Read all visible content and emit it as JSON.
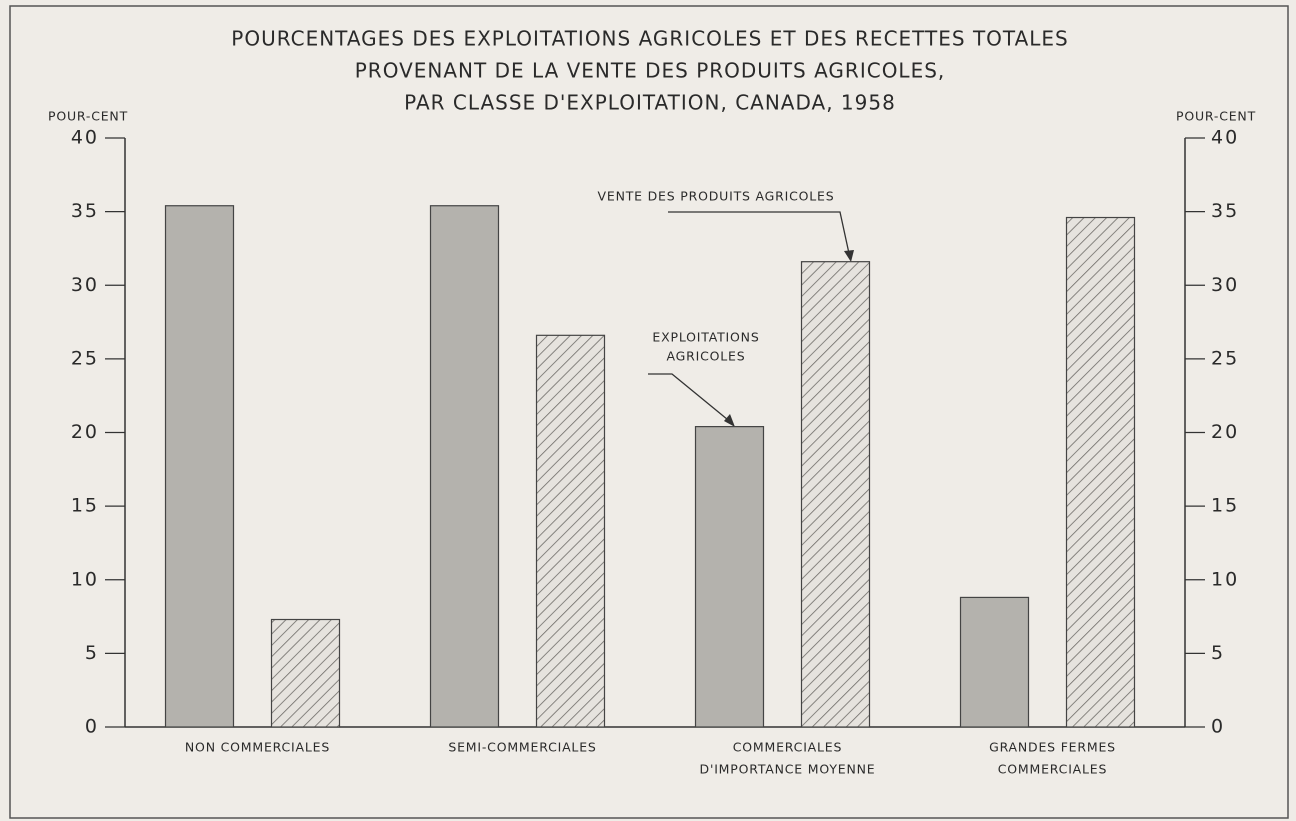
{
  "chart_data": {
    "type": "bar",
    "title": [
      "POURCENTAGES DES EXPLOITATIONS AGRICOLES ET DES RECETTES TOTALES",
      "PROVENANT DE LA VENTE DES PRODUITS AGRICOLES,",
      "PAR CLASSE D'EXPLOITATION, CANADA, 1958"
    ],
    "ylabel": "POUR-CENT",
    "y2label": "POUR-CENT",
    "categories": [
      [
        "NON COMMERCIALES"
      ],
      [
        "SEMI-COMMERCIALES"
      ],
      [
        "COMMERCIALES",
        "D'IMPORTANCE MOYENNE"
      ],
      [
        "GRANDES FERMES",
        "COMMERCIALES"
      ]
    ],
    "series": [
      {
        "name": [
          "EXPLOITATIONS",
          "AGRICOLES"
        ],
        "color": "#b4b2ad",
        "values": [
          35.4,
          35.4,
          20.4,
          8.8
        ]
      },
      {
        "name": [
          "VENTE DES PRODUITS AGRICOLES"
        ],
        "color": "hatch",
        "values": [
          7.3,
          26.6,
          31.6,
          34.6
        ]
      }
    ],
    "ylim": [
      0,
      40
    ],
    "yticks": [
      0,
      5,
      10,
      15,
      20,
      25,
      30,
      35,
      40
    ],
    "y2lim": [
      0,
      40
    ],
    "y2ticks": [
      0,
      5,
      10,
      15,
      20,
      25,
      30,
      35,
      40
    ]
  }
}
